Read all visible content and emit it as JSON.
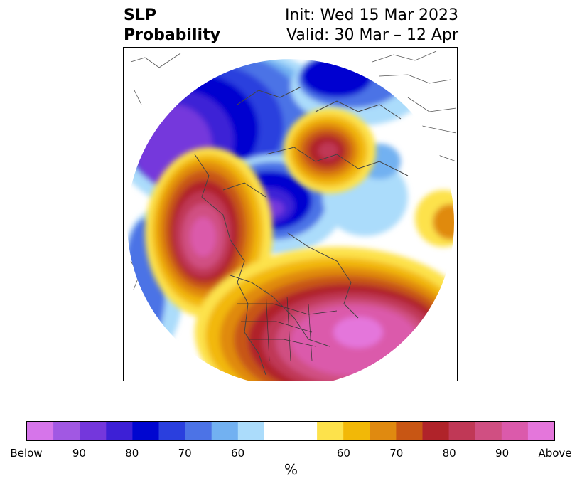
{
  "title": {
    "left_line1": "SLP",
    "left_line2": "Probability",
    "right_line1": "Init: Wed 15 Mar 2023",
    "right_line2": "Valid: 30 Mar – 12 Apr"
  },
  "map": {
    "projection": "polar stereographic (North Pole)",
    "anomaly_centers": [
      {
        "sign": "below",
        "region": "Arctic Ocean / Canadian Arctic",
        "peak_category": "90"
      },
      {
        "sign": "below",
        "region": "Bering Sea / Aleutians",
        "peak_category": "80"
      },
      {
        "sign": "above",
        "region": "North Atlantic / eastern United States",
        "peak_category": "Above"
      },
      {
        "sign": "above",
        "region": "Gulf of Alaska / northeast Pacific",
        "peak_category": "Above"
      },
      {
        "sign": "above",
        "region": "Siberia / central Asia",
        "peak_category": "80"
      }
    ]
  },
  "colorbar": {
    "label": "%",
    "colors": [
      "#d675ea",
      "#a158e3",
      "#7437dc",
      "#3d20d6",
      "#0006d0",
      "#2a3fde",
      "#4c73e6",
      "#72b1f1",
      "#abdcfb",
      "#ffffff",
      "#ffffff",
      "#fde24b",
      "#f2b807",
      "#e08a10",
      "#c85614",
      "#b0232a",
      "#c03856",
      "#d04f82",
      "#db5aab",
      "#e476db"
    ],
    "ticks": [
      "Below",
      "90",
      "80",
      "70",
      "60",
      "60",
      "70",
      "80",
      "90",
      "Above"
    ]
  }
}
